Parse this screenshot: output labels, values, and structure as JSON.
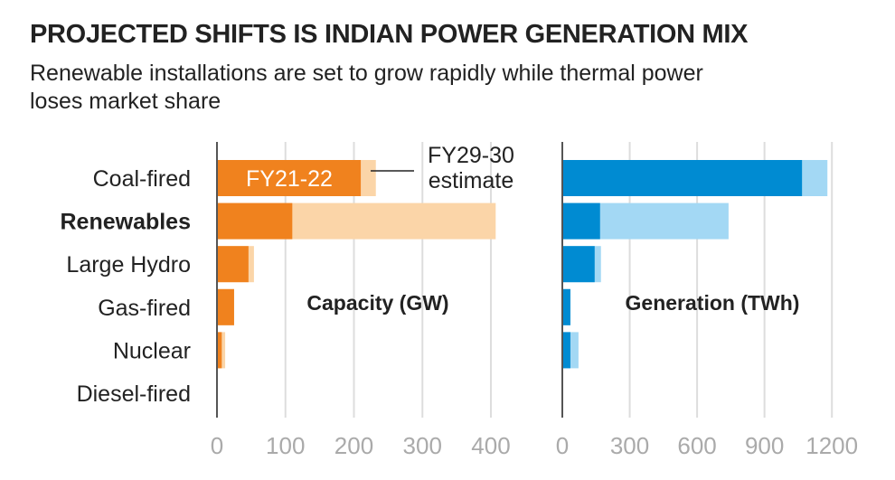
{
  "chart_data": [
    {
      "type": "bar",
      "title": "PROJECTED SHIFTS IS INDIAN POWER GENERATION MIX",
      "subtitle": "Renewable installations are set to grow rapidly while thermal power loses market share",
      "panel_label": "Capacity (GW)",
      "categories": [
        "Coal-fired",
        "Renewables",
        "Large Hydro",
        "Gas-fired",
        "Nuclear",
        "Diesel-fired"
      ],
      "series": [
        {
          "name": "FY21-22",
          "values": [
            210,
            110,
            46,
            25,
            7,
            0.5
          ],
          "color": "#f0821e"
        },
        {
          "name": "FY29-30 estimate",
          "values": [
            232,
            407,
            54,
            25,
            12,
            0.5
          ],
          "color": "#fbd5a8"
        }
      ],
      "xlim": [
        0,
        430
      ],
      "xticks": [
        "0",
        "100",
        "200",
        "300",
        "400"
      ],
      "xtick_values": [
        0,
        100,
        200,
        300,
        400
      ],
      "grid": true
    },
    {
      "type": "bar",
      "panel_label": "Generation (TWh)",
      "categories": [
        "Coal-fired",
        "Renewables",
        "Large Hydro",
        "Gas-fired",
        "Nuclear",
        "Diesel-fired"
      ],
      "series": [
        {
          "name": "FY21-22",
          "values": [
            1067,
            168,
            144,
            36,
            36,
            0
          ],
          "color": "#008bd2"
        },
        {
          "name": "FY29-30 estimate",
          "values": [
            1180,
            740,
            172,
            36,
            72,
            0
          ],
          "color": "#a3d8f4"
        }
      ],
      "xlim": [
        0,
        1270
      ],
      "xticks": [
        "0",
        "300",
        "600",
        "900",
        "1200"
      ],
      "xtick_values": [
        0,
        300,
        600,
        900,
        1200
      ],
      "grid": true
    }
  ],
  "annotations": {
    "current": "FY21-22",
    "estimate_line1": "FY29-30",
    "estimate_line2": "estimate"
  },
  "highlight_category": "Renewables"
}
